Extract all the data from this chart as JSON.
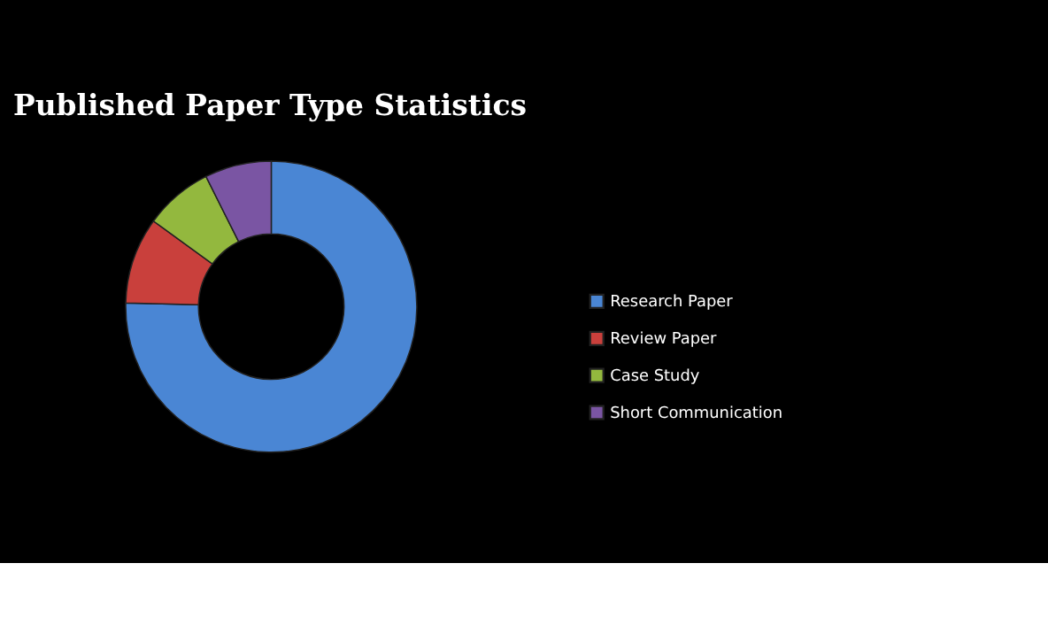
{
  "chart_data": {
    "type": "donut",
    "title": "Published Paper Type Statistics",
    "categories": [
      "Research Paper",
      "Review Paper",
      "Case Study",
      "Short Communication"
    ],
    "values": [
      75.4,
      9.6,
      7.6,
      7.4
    ],
    "colors": [
      "#4a86d4",
      "#c9403c",
      "#93b83e",
      "#7a55a3"
    ],
    "legend": "right"
  }
}
